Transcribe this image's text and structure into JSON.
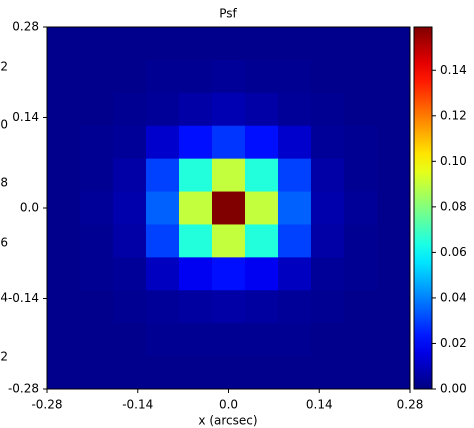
{
  "chart_data": {
    "type": "heatmap",
    "title": "Psf",
    "x_label": "x (arcsec)",
    "xlim": [
      -0.28,
      0.28
    ],
    "ylim": [
      -0.28,
      0.28
    ],
    "xticks": [
      -0.28,
      -0.14,
      {
        "value": 0,
        "label": "0.0"
      },
      0.14,
      0.28
    ],
    "yticks": [
      -0.28,
      -0.14,
      {
        "value": 0,
        "label": "0.0"
      },
      0.14,
      0.28
    ],
    "colormap": "jet",
    "clim": [
      0,
      0.159
    ],
    "colorbar_ticks": [
      {
        "value": 0,
        "label": "0.00"
      },
      0.02,
      0.04,
      0.06,
      0.08,
      {
        "value": 0.1,
        "label": "0.10"
      },
      0.12,
      0.14
    ],
    "clipped_labels": [
      "2",
      "0",
      "8",
      "6",
      "4",
      "2"
    ],
    "z": [
      [
        0.002,
        0.002,
        0.002,
        0.002,
        0.002,
        0.002,
        0.002,
        0.002,
        0.002,
        0.002,
        0.002
      ],
      [
        0.002,
        0.002,
        0.002,
        0.003,
        0.003,
        0.004,
        0.003,
        0.003,
        0.002,
        0.002,
        0.002
      ],
      [
        0.002,
        0.002,
        0.003,
        0.004,
        0.006,
        0.008,
        0.006,
        0.004,
        0.003,
        0.002,
        0.002
      ],
      [
        0.002,
        0.003,
        0.004,
        0.012,
        0.022,
        0.028,
        0.022,
        0.012,
        0.004,
        0.003,
        0.002
      ],
      [
        0.002,
        0.003,
        0.006,
        0.03,
        0.065,
        0.09,
        0.065,
        0.03,
        0.006,
        0.003,
        0.002
      ],
      [
        0.002,
        0.004,
        0.007,
        0.035,
        0.09,
        0.159,
        0.09,
        0.035,
        0.007,
        0.004,
        0.002
      ],
      [
        0.002,
        0.003,
        0.006,
        0.03,
        0.065,
        0.09,
        0.065,
        0.03,
        0.006,
        0.003,
        0.002
      ],
      [
        0.002,
        0.003,
        0.004,
        0.01,
        0.018,
        0.022,
        0.018,
        0.01,
        0.004,
        0.003,
        0.002
      ],
      [
        0.002,
        0.002,
        0.003,
        0.004,
        0.005,
        0.006,
        0.005,
        0.004,
        0.003,
        0.002,
        0.002
      ],
      [
        0.002,
        0.002,
        0.002,
        0.003,
        0.003,
        0.003,
        0.003,
        0.003,
        0.002,
        0.002,
        0.002
      ],
      [
        0.002,
        0.002,
        0.002,
        0.002,
        0.002,
        0.002,
        0.002,
        0.002,
        0.002,
        0.002,
        0.002
      ]
    ]
  }
}
